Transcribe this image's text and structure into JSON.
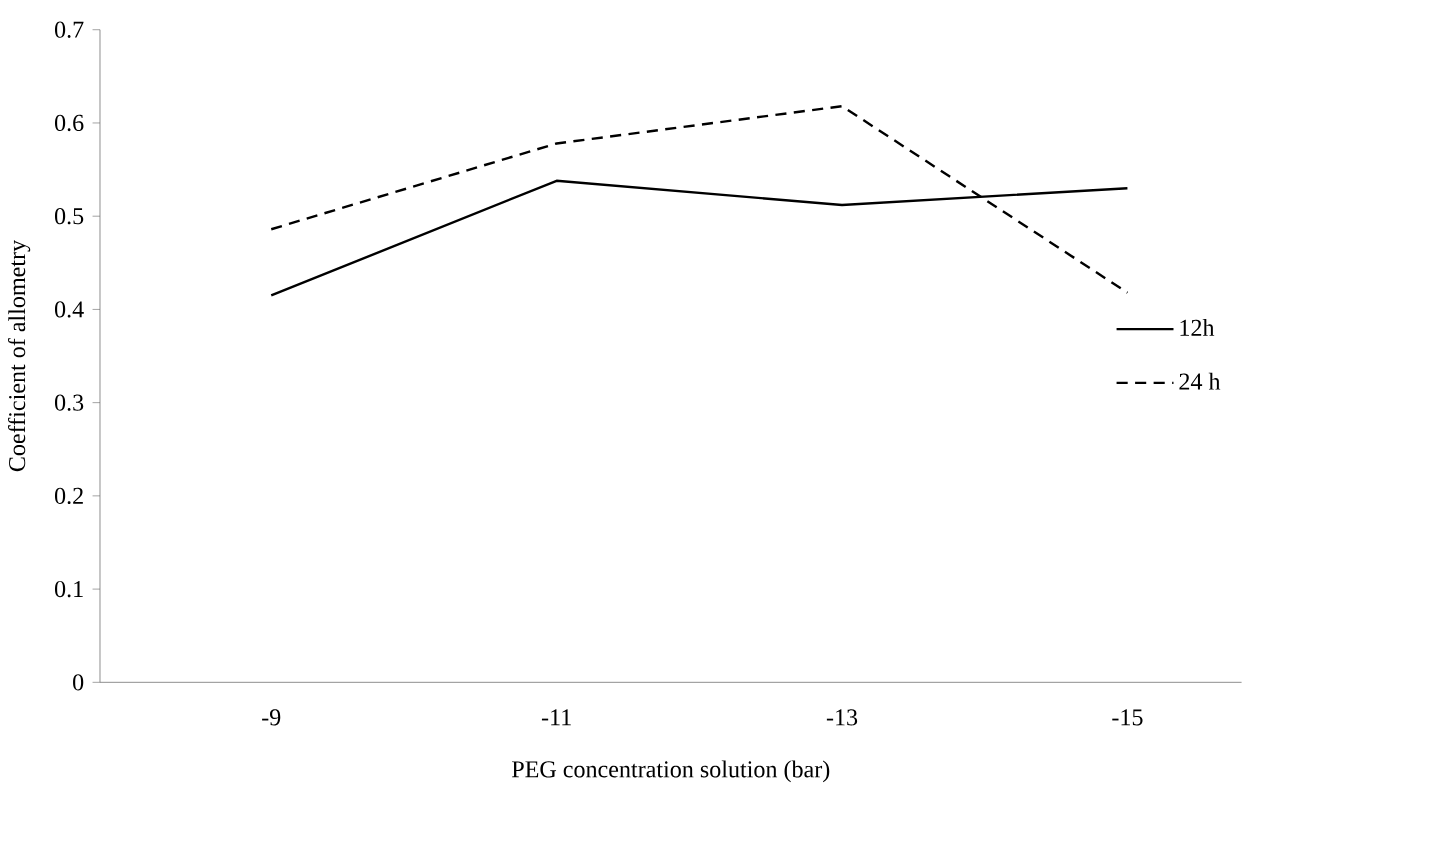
{
  "chart_data": {
    "type": "line",
    "xlabel": "PEG concentration solution (bar)",
    "ylabel": "Coefficient of allometry",
    "categories": [
      "-9",
      "-11",
      "-13",
      "-15"
    ],
    "series": [
      {
        "name": "12h",
        "color": "#000000",
        "line_style": "solid",
        "values": [
          0.415,
          0.538,
          0.512,
          0.53
        ]
      },
      {
        "name": "24 h",
        "color": "#000000",
        "line_style": "dashed",
        "values": [
          0.486,
          0.578,
          0.618,
          0.418
        ]
      }
    ],
    "ylim": [
      0,
      0.7
    ],
    "yticks": [
      0,
      0.1,
      0.2,
      0.3,
      0.4,
      0.5,
      0.6,
      0.7
    ],
    "grid": false,
    "legend": "right",
    "marker": "none"
  }
}
